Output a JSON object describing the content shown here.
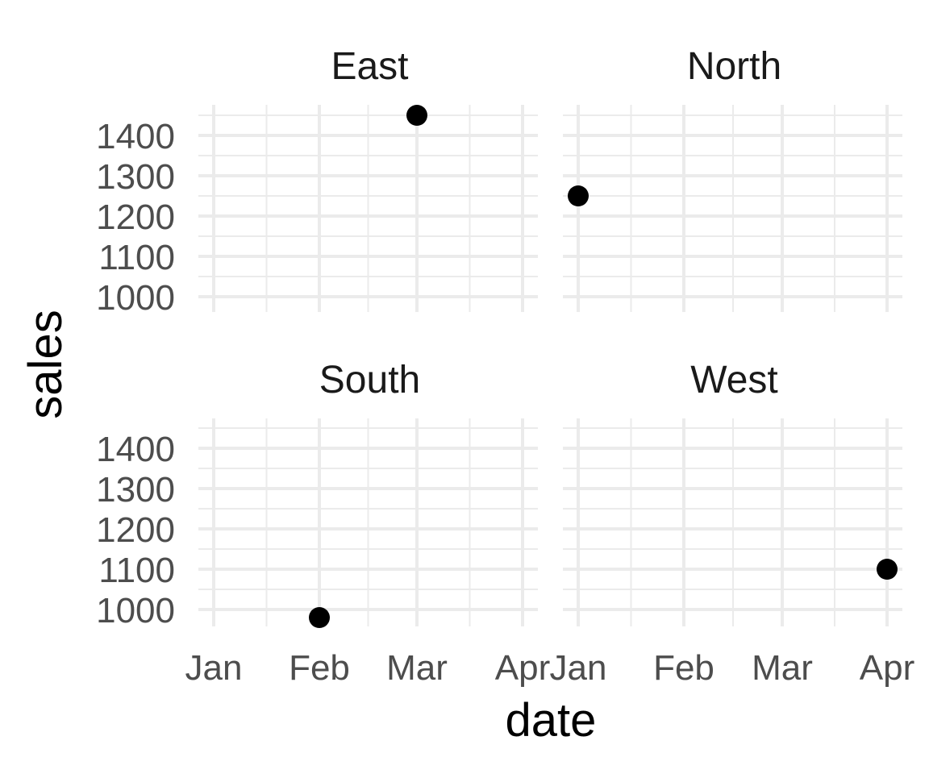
{
  "colors": {
    "background": "#ffffff",
    "grid": "#ebebeb",
    "point": "#000000",
    "strip_text": "#1a1a1a",
    "tick_text": "#4d4d4d",
    "axis_title": "#000000"
  },
  "chart_data": {
    "type": "scatter",
    "facet_by": "region",
    "facet_layout": "2x2",
    "xlabel": "date",
    "ylabel": "sales",
    "x_ticks": [
      "Jan",
      "Feb",
      "Mar",
      "Apr"
    ],
    "y_ticks": [
      1000,
      1100,
      1200,
      1300,
      1400
    ],
    "ylim": [
      970,
      1450
    ],
    "grid": true,
    "legend": "none",
    "panels": [
      {
        "title": "East",
        "points": [
          {
            "x": "Mar",
            "y": 1450
          }
        ]
      },
      {
        "title": "North",
        "points": [
          {
            "x": "Jan",
            "y": 1250
          }
        ]
      },
      {
        "title": "South",
        "points": [
          {
            "x": "Feb",
            "y": 980
          }
        ]
      },
      {
        "title": "West",
        "points": [
          {
            "x": "Apr",
            "y": 1100
          }
        ]
      }
    ]
  }
}
